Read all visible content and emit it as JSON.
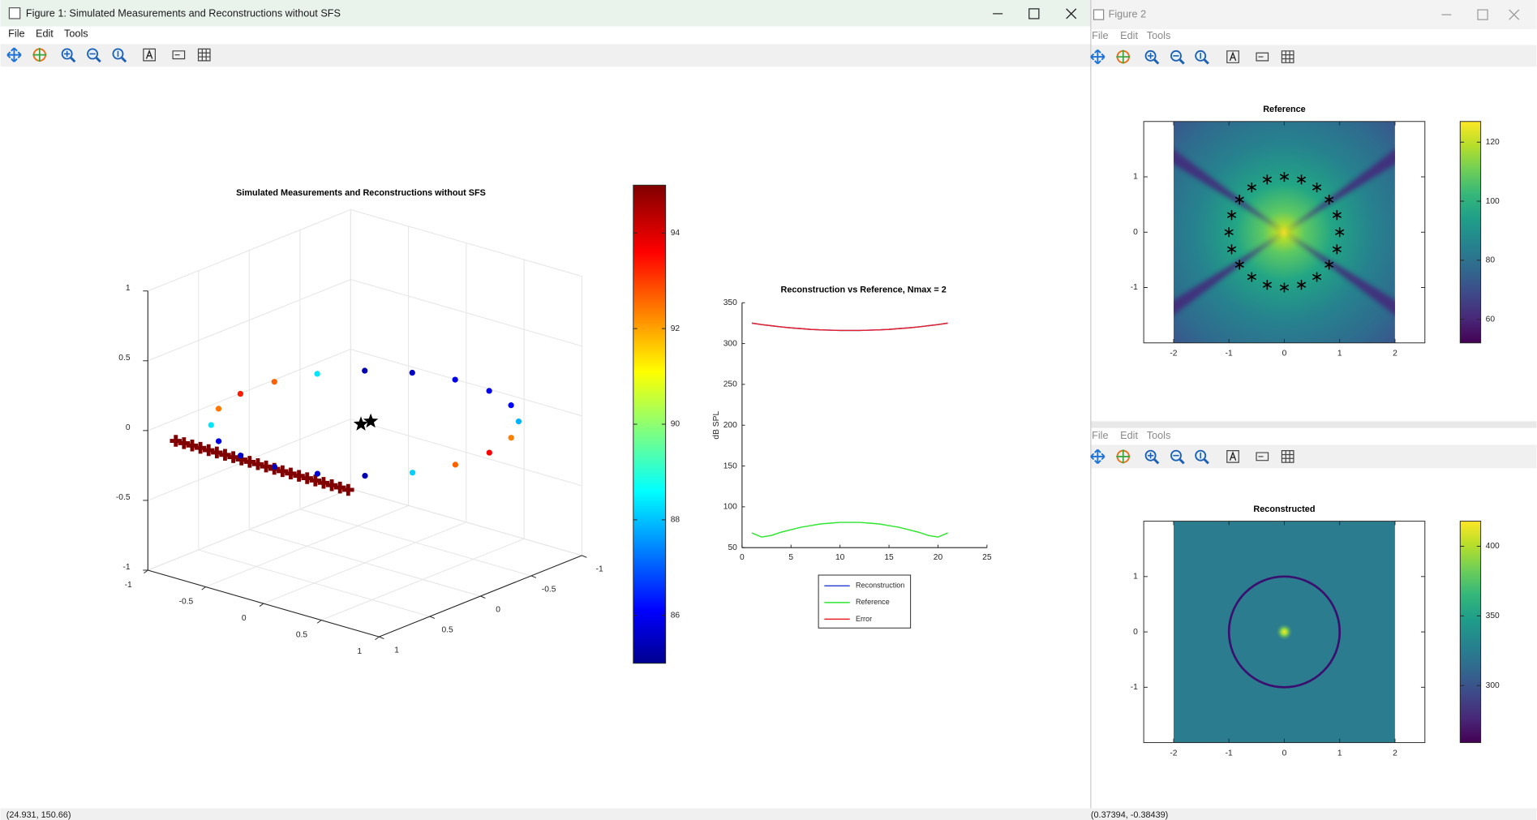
{
  "figure1": {
    "title": "Figure 1: Simulated Measurements and Reconstructions without SFS",
    "menu": [
      "File",
      "Edit",
      "Tools"
    ],
    "status": "(24.931, 150.66)",
    "charts": [
      {
        "type": "scatter3d",
        "title": "Simulated Measurements and Reconstructions without SFS",
        "xlim": [
          -1,
          1
        ],
        "ylim": [
          -1,
          1
        ],
        "zlim": [
          -1,
          1
        ],
        "xticks": [
          -1,
          -0.5,
          0,
          0.5,
          1
        ],
        "yticks": [
          -1,
          -0.5,
          0,
          0.5,
          1
        ],
        "zticks": [
          -1,
          -0.5,
          0,
          0.5,
          1
        ],
        "values": [
          88.5,
          92.6,
          93.5,
          92.8,
          88.5,
          85.5,
          85.7,
          86,
          86,
          86.3,
          88,
          92.5,
          93.8,
          92.8,
          88.3,
          85.5,
          85.8,
          85.6,
          85.8,
          86
        ],
        "colormap": "jet",
        "clim": [
          85,
          95
        ],
        "cticks": [
          86,
          88,
          90,
          92,
          94
        ],
        "grid": true
      },
      {
        "type": "line",
        "title": "Reconstruction vs Reference, Nmax = 2",
        "ylabel": "dB SPL",
        "x": [
          1,
          2,
          3,
          4,
          5,
          6,
          7,
          8,
          9,
          10,
          11,
          12,
          13,
          14,
          15,
          16,
          17,
          18,
          19,
          20,
          21
        ],
        "series": [
          {
            "name": "Reconstruction",
            "color": "#1f3bd6",
            "values": [
              325,
              323.3,
              321.8,
              320.4,
              319.2,
              318.3,
              317.4,
              316.8,
              316.4,
              316.1,
              316,
              316.1,
              316.4,
              316.8,
              317.4,
              318.3,
              319.2,
              320.4,
              321.8,
              323.3,
              325
            ]
          },
          {
            "name": "Reference",
            "color": "#2ee62e",
            "values": [
              68,
              63,
              65,
              69,
              72,
              75,
              77,
              79,
              80,
              81,
              81,
              81,
              80,
              79,
              77,
              75,
              72,
              69,
              65,
              63,
              68
            ]
          },
          {
            "name": "Error",
            "color": "#e8202a",
            "values": [
              325,
              323.3,
              321.8,
              320.4,
              319.2,
              318.3,
              317.4,
              316.8,
              316.4,
              316.1,
              316,
              316.1,
              316.4,
              316.8,
              317.4,
              318.3,
              319.2,
              320.4,
              321.8,
              323.3,
              325
            ]
          }
        ],
        "xlim": [
          0,
          25
        ],
        "ylim": [
          50,
          350
        ],
        "xticks": [
          0,
          5,
          10,
          15,
          20,
          25
        ],
        "yticks": [
          50,
          100,
          150,
          200,
          250,
          300,
          350
        ]
      }
    ]
  },
  "figure2": {
    "title": "Figure 2",
    "menu": [
      "File",
      "Edit",
      "Tools"
    ],
    "chart": {
      "type": "heatmap",
      "title": "Reference",
      "xlim": [
        -2.54,
        2.54
      ],
      "ylim": [
        -2,
        2
      ],
      "image_x": [
        -2,
        2
      ],
      "image_y": [
        -2,
        2
      ],
      "xticks": [
        -2,
        -1,
        0,
        1,
        2
      ],
      "yticks": [
        -1,
        0,
        1
      ],
      "colormap": "viridis",
      "clim": [
        52,
        127
      ],
      "cticks": [
        60,
        80,
        100,
        120
      ]
    }
  },
  "figure3": {
    "menu": [
      "File",
      "Edit",
      "Tools"
    ],
    "status": "(0.37394, -0.38439)",
    "chart": {
      "type": "heatmap",
      "title": "Reconstructed",
      "xlim": [
        -2.54,
        2.54
      ],
      "ylim": [
        -2,
        2
      ],
      "image_x": [
        -2,
        2
      ],
      "image_y": [
        -2,
        2
      ],
      "xticks": [
        -2,
        -1,
        0,
        1,
        2
      ],
      "yticks": [
        -1,
        0,
        1
      ],
      "colormap": "viridis",
      "clim": [
        259,
        418
      ],
      "cticks": [
        300,
        350,
        400
      ]
    }
  }
}
